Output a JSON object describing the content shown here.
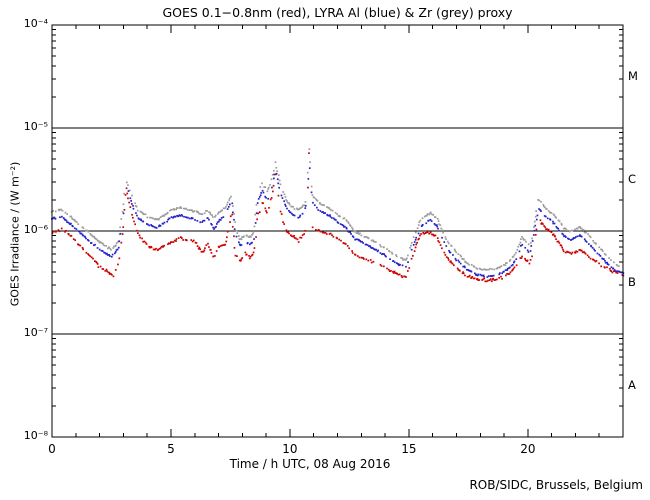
{
  "page": {
    "credit": "ROB/SIDC, Brussels, Belgium"
  },
  "chart_data": {
    "type": "scatter",
    "title": "GOES 0.1−0.8nm (red), LYRA Al (blue) & Zr (grey) proxy",
    "xlabel": "Time / h UTC, 08 Aug 2016",
    "ylabel": "GOES Irradiance / (W m⁻²)",
    "x_range": [
      0,
      24
    ],
    "ylim": [
      1e-08,
      0.0001
    ],
    "x_major_ticks": [
      0,
      5,
      10,
      15,
      20
    ],
    "x_minor_step_h": 1,
    "y_decade_exponents": [
      -4,
      -5,
      -6,
      -7,
      -8
    ],
    "y_tick_labels": [
      "10⁻⁴",
      "10⁻⁵",
      "10⁻⁶",
      "10⁻⁷",
      "10⁻⁸"
    ],
    "hline_values": [
      1e-05,
      1e-06,
      1e-07
    ],
    "flare_classes": [
      {
        "label": "M",
        "mid_value": 3.16e-05
      },
      {
        "label": "C",
        "mid_value": 3.16e-06
      },
      {
        "label": "B",
        "mid_value": 3.16e-07
      },
      {
        "label": "A",
        "mid_value": 3.16e-08
      }
    ],
    "grid": "off",
    "legend": "in title",
    "colors": {
      "red": "#cc0000",
      "blue": "#2323c8",
      "grey": "#9c9c9c",
      "frame": "#000000",
      "background": "#ffffff"
    },
    "values_scale": 1e-06,
    "series": [
      {
        "name": "LYRA Zr proxy",
        "color_name": "grey",
        "color": "#9c9c9c",
        "points": [
          [
            0,
            1.55
          ],
          [
            0.4,
            1.6
          ],
          [
            1,
            1.25
          ],
          [
            1.5,
            0.98
          ],
          [
            2,
            0.78
          ],
          [
            2.5,
            0.66
          ],
          [
            2.8,
            0.8
          ],
          [
            3.0,
            1.8
          ],
          [
            3.1,
            3.3
          ],
          [
            3.3,
            2.4
          ],
          [
            3.6,
            1.6
          ],
          [
            4.0,
            1.38
          ],
          [
            4.4,
            1.28
          ],
          [
            4.7,
            1.4
          ],
          [
            5.0,
            1.6
          ],
          [
            5.4,
            1.68
          ],
          [
            5.7,
            1.6
          ],
          [
            6.0,
            1.55
          ],
          [
            6.3,
            1.45
          ],
          [
            6.55,
            1.6
          ],
          [
            6.8,
            1.35
          ],
          [
            7.0,
            1.5
          ],
          [
            7.3,
            1.7
          ],
          [
            7.55,
            2.25
          ],
          [
            7.7,
            1.1
          ],
          [
            7.9,
            0.82
          ],
          [
            8.1,
            0.9
          ],
          [
            8.35,
            0.88
          ],
          [
            8.5,
            1.0
          ],
          [
            8.65,
            2.4
          ],
          [
            8.85,
            2.9
          ],
          [
            9.05,
            2.4
          ],
          [
            9.25,
            3.2
          ],
          [
            9.4,
            4.6
          ],
          [
            9.6,
            2.8
          ],
          [
            9.85,
            2.0
          ],
          [
            10.1,
            1.7
          ],
          [
            10.35,
            1.6
          ],
          [
            10.6,
            1.8
          ],
          [
            10.72,
            2.2
          ],
          [
            10.8,
            6.2
          ],
          [
            10.95,
            2.2
          ],
          [
            11.2,
            1.9
          ],
          [
            11.6,
            1.7
          ],
          [
            12,
            1.45
          ],
          [
            12.4,
            1.25
          ],
          [
            12.7,
            1.0
          ],
          [
            13,
            0.92
          ],
          [
            13.5,
            0.8
          ],
          [
            14,
            0.68
          ],
          [
            14.5,
            0.56
          ],
          [
            14.9,
            0.52
          ],
          [
            15.1,
            0.75
          ],
          [
            15.5,
            1.3
          ],
          [
            15.9,
            1.5
          ],
          [
            16.2,
            1.3
          ],
          [
            16.6,
            0.8
          ],
          [
            17,
            0.62
          ],
          [
            17.4,
            0.5
          ],
          [
            17.8,
            0.44
          ],
          [
            18.3,
            0.42
          ],
          [
            18.8,
            0.44
          ],
          [
            19.2,
            0.5
          ],
          [
            19.5,
            0.6
          ],
          [
            19.75,
            0.87
          ],
          [
            20.1,
            0.72
          ],
          [
            20.45,
            2.05
          ],
          [
            20.8,
            1.6
          ],
          [
            21.1,
            1.43
          ],
          [
            21.5,
            1.08
          ],
          [
            21.8,
            0.98
          ],
          [
            22.2,
            1.1
          ],
          [
            22.6,
            0.88
          ],
          [
            23,
            0.7
          ],
          [
            23.4,
            0.55
          ],
          [
            23.7,
            0.47
          ],
          [
            24,
            0.43
          ]
        ]
      },
      {
        "name": "LYRA Al proxy",
        "color_name": "blue",
        "color": "#2323c8",
        "points": [
          [
            0,
            1.32
          ],
          [
            0.4,
            1.36
          ],
          [
            1,
            1.06
          ],
          [
            1.5,
            0.83
          ],
          [
            2,
            0.66
          ],
          [
            2.5,
            0.56
          ],
          [
            2.8,
            0.68
          ],
          [
            3.0,
            1.5
          ],
          [
            3.1,
            2.9
          ],
          [
            3.3,
            2.0
          ],
          [
            3.6,
            1.35
          ],
          [
            4.0,
            1.16
          ],
          [
            4.4,
            1.08
          ],
          [
            4.7,
            1.18
          ],
          [
            5.0,
            1.35
          ],
          [
            5.4,
            1.42
          ],
          [
            5.7,
            1.35
          ],
          [
            6.0,
            1.3
          ],
          [
            6.3,
            1.2
          ],
          [
            6.55,
            1.35
          ],
          [
            6.8,
            1.05
          ],
          [
            7.0,
            1.25
          ],
          [
            7.3,
            1.45
          ],
          [
            7.55,
            1.95
          ],
          [
            7.7,
            0.95
          ],
          [
            7.9,
            0.72
          ],
          [
            8.1,
            0.78
          ],
          [
            8.35,
            0.75
          ],
          [
            8.5,
            0.85
          ],
          [
            8.65,
            2.0
          ],
          [
            8.85,
            2.45
          ],
          [
            9.05,
            2.0
          ],
          [
            9.25,
            2.7
          ],
          [
            9.4,
            3.9
          ],
          [
            9.6,
            2.35
          ],
          [
            9.85,
            1.7
          ],
          [
            10.1,
            1.45
          ],
          [
            10.35,
            1.35
          ],
          [
            10.6,
            1.52
          ],
          [
            10.72,
            1.9
          ],
          [
            10.8,
            5.4
          ],
          [
            10.95,
            1.9
          ],
          [
            11.2,
            1.6
          ],
          [
            11.6,
            1.45
          ],
          [
            12,
            1.22
          ],
          [
            12.4,
            1.05
          ],
          [
            12.7,
            0.85
          ],
          [
            13,
            0.78
          ],
          [
            13.5,
            0.68
          ],
          [
            14,
            0.58
          ],
          [
            14.5,
            0.48
          ],
          [
            14.9,
            0.45
          ],
          [
            15.1,
            0.64
          ],
          [
            15.5,
            1.1
          ],
          [
            15.9,
            1.28
          ],
          [
            16.2,
            1.1
          ],
          [
            16.6,
            0.68
          ],
          [
            17,
            0.53
          ],
          [
            17.4,
            0.43
          ],
          [
            17.8,
            0.38
          ],
          [
            18.3,
            0.36
          ],
          [
            18.8,
            0.38
          ],
          [
            19.2,
            0.43
          ],
          [
            19.5,
            0.52
          ],
          [
            19.75,
            0.74
          ],
          [
            20.1,
            0.6
          ],
          [
            20.45,
            1.65
          ],
          [
            20.8,
            1.35
          ],
          [
            21.1,
            1.2
          ],
          [
            21.5,
            0.9
          ],
          [
            21.8,
            0.82
          ],
          [
            22.2,
            0.92
          ],
          [
            22.6,
            0.74
          ],
          [
            23,
            0.59
          ],
          [
            23.4,
            0.47
          ],
          [
            23.7,
            0.41
          ],
          [
            24,
            0.39
          ]
        ]
      },
      {
        "name": "GOES 0.1−0.8nm",
        "color_name": "red",
        "color": "#cc0000",
        "points": [
          [
            0,
            0.95
          ],
          [
            0.45,
            1.06
          ],
          [
            1,
            0.8
          ],
          [
            1.5,
            0.6
          ],
          [
            2,
            0.45
          ],
          [
            2.6,
            0.37
          ],
          [
            2.85,
            0.55
          ],
          [
            3.0,
            1.1
          ],
          [
            3.1,
            2.7
          ],
          [
            3.3,
            1.6
          ],
          [
            3.6,
            0.95
          ],
          [
            4.0,
            0.72
          ],
          [
            4.4,
            0.65
          ],
          [
            4.7,
            0.7
          ],
          [
            5.0,
            0.78
          ],
          [
            5.4,
            0.86
          ],
          [
            5.7,
            0.8
          ],
          [
            6.0,
            0.8
          ],
          [
            6.3,
            0.62
          ],
          [
            6.55,
            0.75
          ],
          [
            6.8,
            0.55
          ],
          [
            7.0,
            0.7
          ],
          [
            7.3,
            0.75
          ],
          [
            7.55,
            1.5
          ],
          [
            7.7,
            0.6
          ],
          [
            7.9,
            0.5
          ],
          [
            8.1,
            0.62
          ],
          [
            8.35,
            0.55
          ],
          [
            8.5,
            0.62
          ],
          [
            8.65,
            1.4
          ],
          [
            8.85,
            1.9
          ],
          [
            9.05,
            1.5
          ],
          [
            9.25,
            2.2
          ],
          [
            9.4,
            3.5
          ],
          [
            9.6,
            1.55
          ],
          [
            9.85,
            1.0
          ],
          [
            10.1,
            0.9
          ],
          [
            10.35,
            0.8
          ],
          [
            10.6,
            0.95
          ],
          [
            10.72,
            1.2
          ],
          [
            10.8,
            5.8
          ],
          [
            10.95,
            1.1
          ],
          [
            11.2,
            1.0
          ],
          [
            11.6,
            0.95
          ],
          [
            12,
            0.85
          ],
          [
            12.4,
            0.72
          ],
          [
            12.7,
            0.6
          ],
          [
            13,
            0.55
          ],
          [
            13.5,
            0.5
          ],
          [
            14,
            0.44
          ],
          [
            14.5,
            0.38
          ],
          [
            14.9,
            0.36
          ],
          [
            15.1,
            0.52
          ],
          [
            15.5,
            0.95
          ],
          [
            15.9,
            0.97
          ],
          [
            16.2,
            0.85
          ],
          [
            16.6,
            0.55
          ],
          [
            17,
            0.44
          ],
          [
            17.4,
            0.37
          ],
          [
            17.8,
            0.34
          ],
          [
            18.3,
            0.33
          ],
          [
            18.8,
            0.34
          ],
          [
            19.2,
            0.38
          ],
          [
            19.5,
            0.45
          ],
          [
            19.75,
            0.57
          ],
          [
            20.1,
            0.48
          ],
          [
            20.45,
            1.3
          ],
          [
            20.8,
            1.05
          ],
          [
            21.1,
            0.92
          ],
          [
            21.5,
            0.65
          ],
          [
            21.8,
            0.6
          ],
          [
            22.2,
            0.66
          ],
          [
            22.6,
            0.56
          ],
          [
            23,
            0.48
          ],
          [
            23.4,
            0.42
          ],
          [
            23.7,
            0.39
          ],
          [
            24,
            0.37
          ]
        ]
      }
    ]
  }
}
